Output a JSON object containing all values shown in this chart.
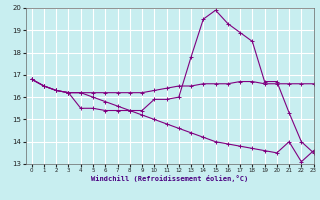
{
  "xlabel": "Windchill (Refroidissement éolien,°C)",
  "background_color": "#c8eef0",
  "grid_color": "#ffffff",
  "line_color": "#800080",
  "x_hours": [
    0,
    1,
    2,
    3,
    4,
    5,
    6,
    7,
    8,
    9,
    10,
    11,
    12,
    13,
    14,
    15,
    16,
    17,
    18,
    19,
    20,
    21,
    22,
    23
  ],
  "series1": [
    16.8,
    16.5,
    16.3,
    16.2,
    16.2,
    16.2,
    16.2,
    16.2,
    16.2,
    16.2,
    16.3,
    16.4,
    16.5,
    16.5,
    16.6,
    16.6,
    16.6,
    16.7,
    16.7,
    16.6,
    16.6,
    16.6,
    16.6,
    16.6
  ],
  "series2": [
    16.8,
    16.5,
    16.3,
    16.2,
    15.5,
    15.5,
    15.4,
    15.4,
    15.4,
    15.4,
    15.9,
    15.9,
    16.0,
    17.8,
    19.5,
    19.9,
    19.3,
    18.9,
    18.5,
    16.7,
    16.7,
    15.3,
    14.0,
    13.5
  ],
  "series3": [
    16.8,
    16.5,
    16.3,
    16.2,
    16.2,
    16.0,
    15.8,
    15.6,
    15.4,
    15.2,
    15.0,
    14.8,
    14.6,
    14.4,
    14.2,
    14.0,
    13.9,
    13.8,
    13.7,
    13.6,
    13.5,
    14.0,
    13.1,
    13.6
  ],
  "ylim": [
    13,
    20
  ],
  "xlim": [
    -0.5,
    23
  ],
  "yticks": [
    13,
    14,
    15,
    16,
    17,
    18,
    19,
    20
  ],
  "xticks": [
    0,
    1,
    2,
    3,
    4,
    5,
    6,
    7,
    8,
    9,
    10,
    11,
    12,
    13,
    14,
    15,
    16,
    17,
    18,
    19,
    20,
    21,
    22,
    23
  ]
}
